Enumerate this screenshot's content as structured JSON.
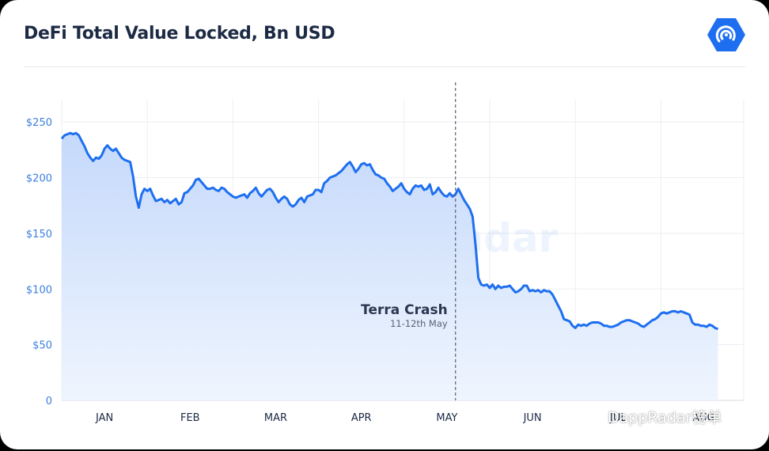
{
  "header": {
    "title": "DeFi Total Value Locked, Bn USD"
  },
  "colors": {
    "line": "#1e6ff0",
    "fill_top": "#c7dbfb",
    "fill_bottom": "#eef4fd",
    "axis_text": "#3d7fe0",
    "month_text": "#1c2a44",
    "grid": "#ebedf1",
    "annotation": "#5a6272",
    "logo": "#1e6ff0"
  },
  "icons": {
    "logo": "dappradar-logo-icon",
    "footer": "wechat-icon"
  },
  "watermark": {
    "center_text": "DappRadar",
    "footer_text": "DappRadar榜单"
  },
  "chart_data": {
    "type": "area",
    "title": "DeFi Total Value Locked, Bn USD",
    "xlabel": "",
    "ylabel": "",
    "ylim": [
      0,
      270
    ],
    "y_ticks": [
      0,
      50,
      100,
      150,
      200,
      250
    ],
    "y_tick_labels": [
      "0",
      "$50",
      "$100",
      "$150",
      "$200",
      "$250"
    ],
    "x_tick_labels": [
      "JAN",
      "FEB",
      "MAR",
      "APR",
      "MAY",
      "JUN",
      "JUL",
      "AUG"
    ],
    "x_ticks_day": [
      15,
      45,
      75,
      105,
      135,
      165,
      195,
      225
    ],
    "xlim_day": [
      0,
      239
    ],
    "grid": true,
    "annotation": {
      "title": "Terra Crash",
      "subtitle": "11-12th May",
      "day": 138
    },
    "series": [
      {
        "values": [
          [
            0,
            235
          ],
          [
            1,
            238
          ],
          [
            2,
            239
          ],
          [
            3,
            240
          ],
          [
            4,
            239
          ],
          [
            5,
            240
          ],
          [
            6,
            238
          ],
          [
            7,
            233
          ],
          [
            8,
            228
          ],
          [
            9,
            222
          ],
          [
            10,
            218
          ],
          [
            11,
            215
          ],
          [
            12,
            218
          ],
          [
            13,
            217
          ],
          [
            14,
            220
          ],
          [
            15,
            226
          ],
          [
            16,
            229
          ],
          [
            17,
            226
          ],
          [
            18,
            224
          ],
          [
            19,
            226
          ],
          [
            20,
            222
          ],
          [
            21,
            218
          ],
          [
            22,
            216
          ],
          [
            23,
            215
          ],
          [
            24,
            214
          ],
          [
            25,
            201
          ],
          [
            26,
            183
          ],
          [
            27,
            173
          ],
          [
            28,
            185
          ],
          [
            29,
            190
          ],
          [
            30,
            188
          ],
          [
            31,
            190
          ],
          [
            32,
            184
          ],
          [
            33,
            179
          ],
          [
            34,
            180
          ],
          [
            35,
            181
          ],
          [
            36,
            178
          ],
          [
            37,
            180
          ],
          [
            38,
            177
          ],
          [
            39,
            179
          ],
          [
            40,
            181
          ],
          [
            41,
            176
          ],
          [
            42,
            178
          ],
          [
            43,
            186
          ],
          [
            44,
            187
          ],
          [
            45,
            190
          ],
          [
            46,
            193
          ],
          [
            47,
            198
          ],
          [
            48,
            199
          ],
          [
            49,
            196
          ],
          [
            50,
            193
          ],
          [
            51,
            190
          ],
          [
            52,
            190
          ],
          [
            53,
            191
          ],
          [
            54,
            189
          ],
          [
            55,
            188
          ],
          [
            56,
            191
          ],
          [
            57,
            190
          ],
          [
            58,
            187
          ],
          [
            59,
            185
          ],
          [
            60,
            183
          ],
          [
            61,
            182
          ],
          [
            62,
            183
          ],
          [
            63,
            184
          ],
          [
            64,
            185
          ],
          [
            65,
            182
          ],
          [
            66,
            186
          ],
          [
            67,
            188
          ],
          [
            68,
            191
          ],
          [
            69,
            186
          ],
          [
            70,
            183
          ],
          [
            71,
            186
          ],
          [
            72,
            189
          ],
          [
            73,
            190
          ],
          [
            74,
            187
          ],
          [
            75,
            182
          ],
          [
            76,
            178
          ],
          [
            77,
            181
          ],
          [
            78,
            183
          ],
          [
            79,
            181
          ],
          [
            80,
            176
          ],
          [
            81,
            174
          ],
          [
            82,
            176
          ],
          [
            83,
            180
          ],
          [
            84,
            182
          ],
          [
            85,
            178
          ],
          [
            86,
            183
          ],
          [
            87,
            184
          ],
          [
            88,
            185
          ],
          [
            89,
            189
          ],
          [
            90,
            189
          ],
          [
            91,
            187
          ],
          [
            92,
            195
          ],
          [
            93,
            197
          ],
          [
            94,
            200
          ],
          [
            95,
            201
          ],
          [
            96,
            202
          ],
          [
            97,
            204
          ],
          [
            98,
            206
          ],
          [
            99,
            209
          ],
          [
            100,
            212
          ],
          [
            101,
            214
          ],
          [
            102,
            210
          ],
          [
            103,
            205
          ],
          [
            104,
            208
          ],
          [
            105,
            212
          ],
          [
            106,
            213
          ],
          [
            107,
            211
          ],
          [
            108,
            212
          ],
          [
            109,
            207
          ],
          [
            110,
            203
          ],
          [
            111,
            202
          ],
          [
            112,
            200
          ],
          [
            113,
            199
          ],
          [
            114,
            195
          ],
          [
            115,
            192
          ],
          [
            116,
            188
          ],
          [
            117,
            190
          ],
          [
            118,
            192
          ],
          [
            119,
            195
          ],
          [
            120,
            190
          ],
          [
            121,
            187
          ],
          [
            122,
            185
          ],
          [
            123,
            190
          ],
          [
            124,
            193
          ],
          [
            125,
            192
          ],
          [
            126,
            193
          ],
          [
            127,
            189
          ],
          [
            128,
            190
          ],
          [
            129,
            194
          ],
          [
            130,
            185
          ],
          [
            131,
            187
          ],
          [
            132,
            191
          ],
          [
            133,
            187
          ],
          [
            134,
            184
          ],
          [
            135,
            183
          ],
          [
            136,
            186
          ],
          [
            137,
            183
          ],
          [
            138,
            185
          ],
          [
            139,
            190
          ],
          [
            140,
            185
          ],
          [
            141,
            180
          ],
          [
            142,
            176
          ],
          [
            143,
            172
          ],
          [
            144,
            165
          ],
          [
            145,
            140
          ],
          [
            146,
            110
          ],
          [
            147,
            104
          ],
          [
            148,
            103
          ],
          [
            149,
            104
          ],
          [
            150,
            101
          ],
          [
            151,
            104
          ],
          [
            152,
            100
          ],
          [
            153,
            103
          ],
          [
            154,
            101
          ],
          [
            155,
            102
          ],
          [
            156,
            102
          ],
          [
            157,
            103
          ],
          [
            158,
            100
          ],
          [
            159,
            97
          ],
          [
            160,
            98
          ],
          [
            161,
            100
          ],
          [
            162,
            103
          ],
          [
            163,
            103
          ],
          [
            164,
            98
          ],
          [
            165,
            99
          ],
          [
            166,
            98
          ],
          [
            167,
            99
          ],
          [
            168,
            97
          ],
          [
            169,
            99
          ],
          [
            170,
            98
          ],
          [
            171,
            98
          ],
          [
            172,
            95
          ],
          [
            173,
            90
          ],
          [
            174,
            85
          ],
          [
            175,
            80
          ],
          [
            176,
            73
          ],
          [
            177,
            72
          ],
          [
            178,
            71
          ],
          [
            179,
            67
          ],
          [
            180,
            65
          ],
          [
            181,
            68
          ],
          [
            182,
            67
          ],
          [
            183,
            68
          ],
          [
            184,
            67
          ],
          [
            185,
            69
          ],
          [
            186,
            70
          ],
          [
            187,
            70
          ],
          [
            188,
            70
          ],
          [
            189,
            69
          ],
          [
            190,
            67
          ],
          [
            191,
            67
          ],
          [
            192,
            66
          ],
          [
            193,
            66
          ],
          [
            194,
            67
          ],
          [
            195,
            68
          ],
          [
            196,
            70
          ],
          [
            197,
            71
          ],
          [
            198,
            72
          ],
          [
            199,
            72
          ],
          [
            200,
            71
          ],
          [
            201,
            70
          ],
          [
            202,
            69
          ],
          [
            203,
            67
          ],
          [
            204,
            66
          ],
          [
            205,
            68
          ],
          [
            206,
            70
          ],
          [
            207,
            72
          ],
          [
            208,
            73
          ],
          [
            209,
            75
          ],
          [
            210,
            78
          ],
          [
            211,
            79
          ],
          [
            212,
            78
          ],
          [
            213,
            79
          ],
          [
            214,
            80
          ],
          [
            215,
            80
          ],
          [
            216,
            79
          ],
          [
            217,
            80
          ],
          [
            218,
            79
          ],
          [
            219,
            78
          ],
          [
            220,
            77
          ],
          [
            221,
            70
          ],
          [
            222,
            68
          ],
          [
            223,
            68
          ],
          [
            224,
            67
          ],
          [
            225,
            67
          ],
          [
            226,
            66
          ],
          [
            227,
            68
          ],
          [
            228,
            67
          ],
          [
            229,
            65
          ],
          [
            230,
            64
          ]
        ]
      }
    ]
  }
}
